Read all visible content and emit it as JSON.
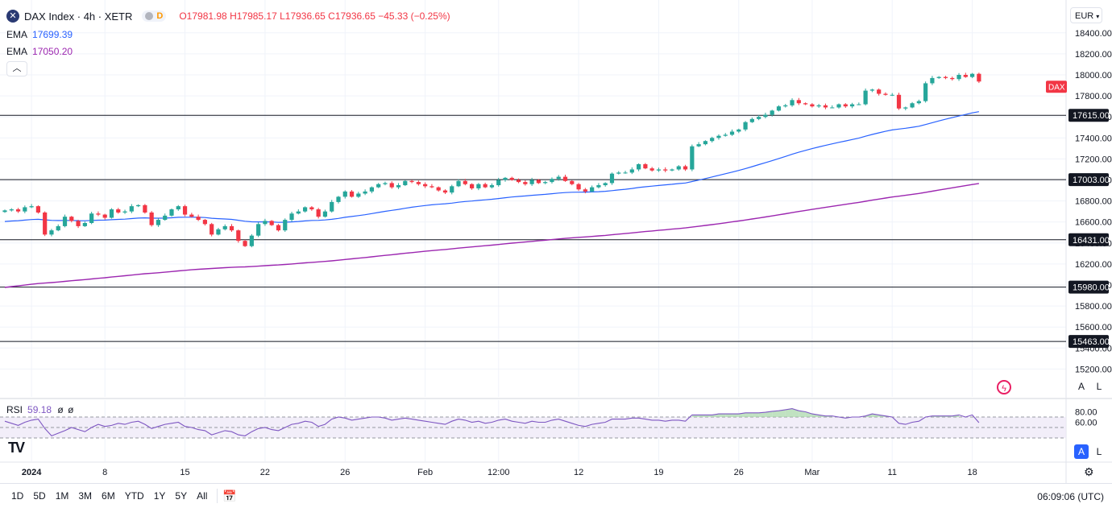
{
  "header": {
    "symbol_icon": "x-logo-icon",
    "title": "DAX Index · 4h · XETR",
    "pill_label": "D",
    "ohlc": "O17981.98  H17985.17  L17936.65  C17936.65  −45.33 (−0.25%)",
    "ema1_label": "EMA",
    "ema1_value": "17699.39",
    "ema2_label": "EMA",
    "ema2_value": "17050.20",
    "collapse_icon": "chevron-up-icon"
  },
  "rsi": {
    "label": "RSI",
    "value": "59.18",
    "extra1": "ø",
    "extra2": "ø"
  },
  "toolbar": {
    "currency": "EUR",
    "a_label": "A",
    "l_label": "L",
    "ranges": [
      "1D",
      "5D",
      "1M",
      "3M",
      "6M",
      "YTD",
      "1Y",
      "5Y",
      "All"
    ],
    "clock": "06:09:06 (UTC)",
    "calendar_icon": "calendar-goto-icon",
    "gear_icon": "gear-icon",
    "logo": "TV"
  },
  "colors": {
    "up": "#26a69a",
    "down": "#f23645",
    "ema_fast": "#2962ff",
    "ema_slow": "#9c27b0",
    "rsi": "#7e57c2"
  },
  "chart_data": [
    {
      "type": "candlestick",
      "title": "DAX Index · 4h · XETR",
      "y_ticks": [
        15200,
        15400,
        15600,
        15800,
        16000,
        16200,
        16400,
        16600,
        16800,
        17000,
        17200,
        17400,
        17600,
        17800,
        18000,
        18200,
        18400
      ],
      "y_tick_labels": [
        "15200.00",
        "15400.00",
        "15600.00",
        "15800.00",
        "16000.00",
        "16200.00",
        "16400.00",
        "16600.00",
        "16800.00",
        "17000.00",
        "17200.00",
        "17400.00",
        "17600.00",
        "17800.00",
        "18000.00",
        "18200.00",
        "18400.00"
      ],
      "ylim": [
        15000,
        18550
      ],
      "x_tick_labels": [
        "2024",
        "8",
        "15",
        "22",
        "26",
        "Feb",
        "12:00",
        "12",
        "19",
        "26",
        "Mar",
        "11",
        "18"
      ],
      "x_tick_index": [
        4,
        15,
        27,
        39,
        51,
        63,
        74,
        86,
        98,
        110,
        121,
        133,
        145
      ],
      "horizontal_levels": [
        17615.0,
        17003.0,
        16431.0,
        15980.0,
        15463.0
      ],
      "last_label": "DAX",
      "last_price": 17936.65,
      "close": [
        16710,
        16720,
        16700,
        16740,
        16750,
        16690,
        16480,
        16520,
        16560,
        16650,
        16610,
        16560,
        16590,
        16680,
        16670,
        16640,
        16720,
        16690,
        16700,
        16750,
        16760,
        16690,
        16570,
        16620,
        16660,
        16720,
        16750,
        16670,
        16650,
        16620,
        16580,
        16480,
        16530,
        16560,
        16520,
        16420,
        16370,
        16470,
        16580,
        16610,
        16570,
        16520,
        16620,
        16680,
        16700,
        16740,
        16720,
        16650,
        16700,
        16790,
        16840,
        16890,
        16840,
        16870,
        16890,
        16930,
        16960,
        16970,
        16930,
        16950,
        16990,
        16980,
        16960,
        16940,
        16930,
        16900,
        16880,
        16940,
        16990,
        16960,
        16920,
        16960,
        16930,
        16950,
        17000,
        17020,
        17000,
        16980,
        16960,
        17000,
        16970,
        16980,
        17010,
        17030,
        16990,
        16960,
        16910,
        16890,
        16930,
        16950,
        16970,
        17060,
        17070,
        17070,
        17100,
        17150,
        17110,
        17090,
        17100,
        17090,
        17100,
        17130,
        17100,
        17320,
        17340,
        17370,
        17400,
        17420,
        17430,
        17460,
        17480,
        17550,
        17580,
        17600,
        17620,
        17660,
        17700,
        17710,
        17760,
        17730,
        17720,
        17700,
        17710,
        17690,
        17690,
        17720,
        17700,
        17720,
        17720,
        17850,
        17860,
        17820,
        17810,
        17810,
        17680,
        17690,
        17730,
        17750,
        17920,
        17970,
        17980,
        17970,
        17960,
        18000,
        17980,
        18010,
        17936.65
      ]
    },
    {
      "type": "line",
      "title": "RSI",
      "y_ticks": [
        60.0,
        80.0
      ],
      "y_tick_labels": [
        "60.00",
        "80.00"
      ],
      "ylim": [
        20,
        100
      ],
      "bands": [
        70,
        50,
        30
      ],
      "value_label": "59.18",
      "values": [
        62,
        58,
        54,
        60,
        64,
        66,
        48,
        34,
        39,
        44,
        50,
        46,
        42,
        50,
        56,
        52,
        54,
        58,
        56,
        60,
        62,
        56,
        48,
        52,
        56,
        58,
        60,
        52,
        50,
        46,
        44,
        36,
        40,
        44,
        42,
        36,
        34,
        42,
        48,
        50,
        46,
        44,
        50,
        56,
        58,
        62,
        60,
        52,
        56,
        66,
        70,
        68,
        64,
        66,
        68,
        70,
        70,
        68,
        64,
        66,
        68,
        66,
        64,
        62,
        60,
        58,
        56,
        62,
        66,
        64,
        60,
        62,
        58,
        60,
        64,
        66,
        62,
        60,
        58,
        62,
        60,
        60,
        64,
        66,
        62,
        58,
        54,
        52,
        56,
        58,
        60,
        66,
        66,
        66,
        68,
        68,
        66,
        64,
        64,
        62,
        64,
        64,
        62,
        74,
        74,
        74,
        74,
        76,
        76,
        76,
        76,
        78,
        78,
        78,
        79,
        81,
        82,
        84,
        86,
        82,
        80,
        76,
        74,
        72,
        72,
        70,
        68,
        70,
        70,
        72,
        76,
        74,
        72,
        70,
        58,
        56,
        60,
        62,
        70,
        72,
        72,
        72,
        72,
        74,
        70,
        74,
        59.18
      ]
    }
  ]
}
